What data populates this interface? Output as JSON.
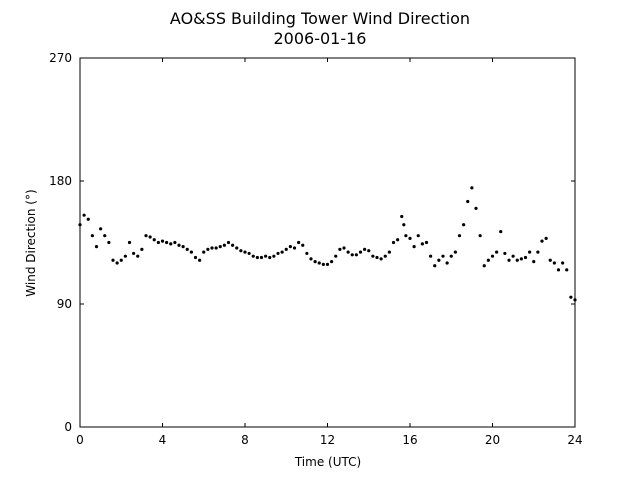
{
  "chart_data": {
    "type": "scatter",
    "title": "AO&SS Building Tower Wind Direction",
    "subtitle": "2006-01-16",
    "x_label": "Time (UTC)",
    "y_label": "Wind Direction (°)",
    "color": "#000000",
    "xlim": [
      0,
      24
    ],
    "xticks": [
      0,
      4,
      8,
      12,
      16,
      20,
      24
    ],
    "ylim": [
      0,
      270
    ],
    "yticks": [
      0,
      90,
      180,
      270
    ],
    "x": [
      0.0,
      0.2,
      0.4,
      0.6,
      0.8,
      1.0,
      1.2,
      1.4,
      1.6,
      1.8,
      2.0,
      2.2,
      2.4,
      2.6,
      2.8,
      3.0,
      3.2,
      3.4,
      3.6,
      3.8,
      4.0,
      4.2,
      4.4,
      4.6,
      4.8,
      5.0,
      5.2,
      5.4,
      5.6,
      5.8,
      6.0,
      6.2,
      6.4,
      6.6,
      6.8,
      7.0,
      7.2,
      7.4,
      7.6,
      7.8,
      8.0,
      8.2,
      8.4,
      8.6,
      8.8,
      9.0,
      9.2,
      9.4,
      9.6,
      9.8,
      10.0,
      10.2,
      10.4,
      10.6,
      10.8,
      11.0,
      11.2,
      11.4,
      11.6,
      11.8,
      12.0,
      12.2,
      12.4,
      12.6,
      12.8,
      13.0,
      13.2,
      13.4,
      13.6,
      13.8,
      14.0,
      14.2,
      14.4,
      14.6,
      14.8,
      15.0,
      15.2,
      15.4,
      15.6,
      15.7,
      15.8,
      16.0,
      16.2,
      16.4,
      16.6,
      16.8,
      17.0,
      17.2,
      17.4,
      17.6,
      17.8,
      18.0,
      18.2,
      18.4,
      18.6,
      18.8,
      19.0,
      19.2,
      19.4,
      19.6,
      19.8,
      20.0,
      20.2,
      20.4,
      20.6,
      20.8,
      21.0,
      21.2,
      21.4,
      21.6,
      21.8,
      22.0,
      22.2,
      22.4,
      22.6,
      22.8,
      23.0,
      23.2,
      23.4,
      23.6,
      23.8,
      24.0
    ],
    "values": [
      148,
      155,
      152,
      140,
      132,
      145,
      140,
      135,
      122,
      120,
      122,
      125,
      135,
      127,
      125,
      130,
      140,
      139,
      137,
      135,
      136,
      135,
      134,
      135,
      133,
      132,
      130,
      128,
      124,
      122,
      128,
      130,
      131,
      131,
      132,
      133,
      135,
      133,
      131,
      129,
      128,
      127,
      125,
      124,
      124,
      125,
      124,
      125,
      127,
      128,
      130,
      132,
      131,
      135,
      133,
      127,
      123,
      121,
      120,
      119,
      119,
      121,
      125,
      130,
      131,
      128,
      126,
      126,
      128,
      130,
      129,
      125,
      124,
      123,
      125,
      128,
      135,
      137,
      154,
      148,
      140,
      138,
      132,
      140,
      134,
      135,
      125,
      118,
      122,
      125,
      120,
      125,
      128,
      140,
      148,
      165,
      175,
      160,
      140,
      118,
      122,
      125,
      128,
      143,
      127,
      122,
      125,
      122,
      123,
      124,
      128,
      121,
      128,
      136,
      138,
      122,
      120,
      115,
      120,
      115,
      95,
      93
    ]
  }
}
